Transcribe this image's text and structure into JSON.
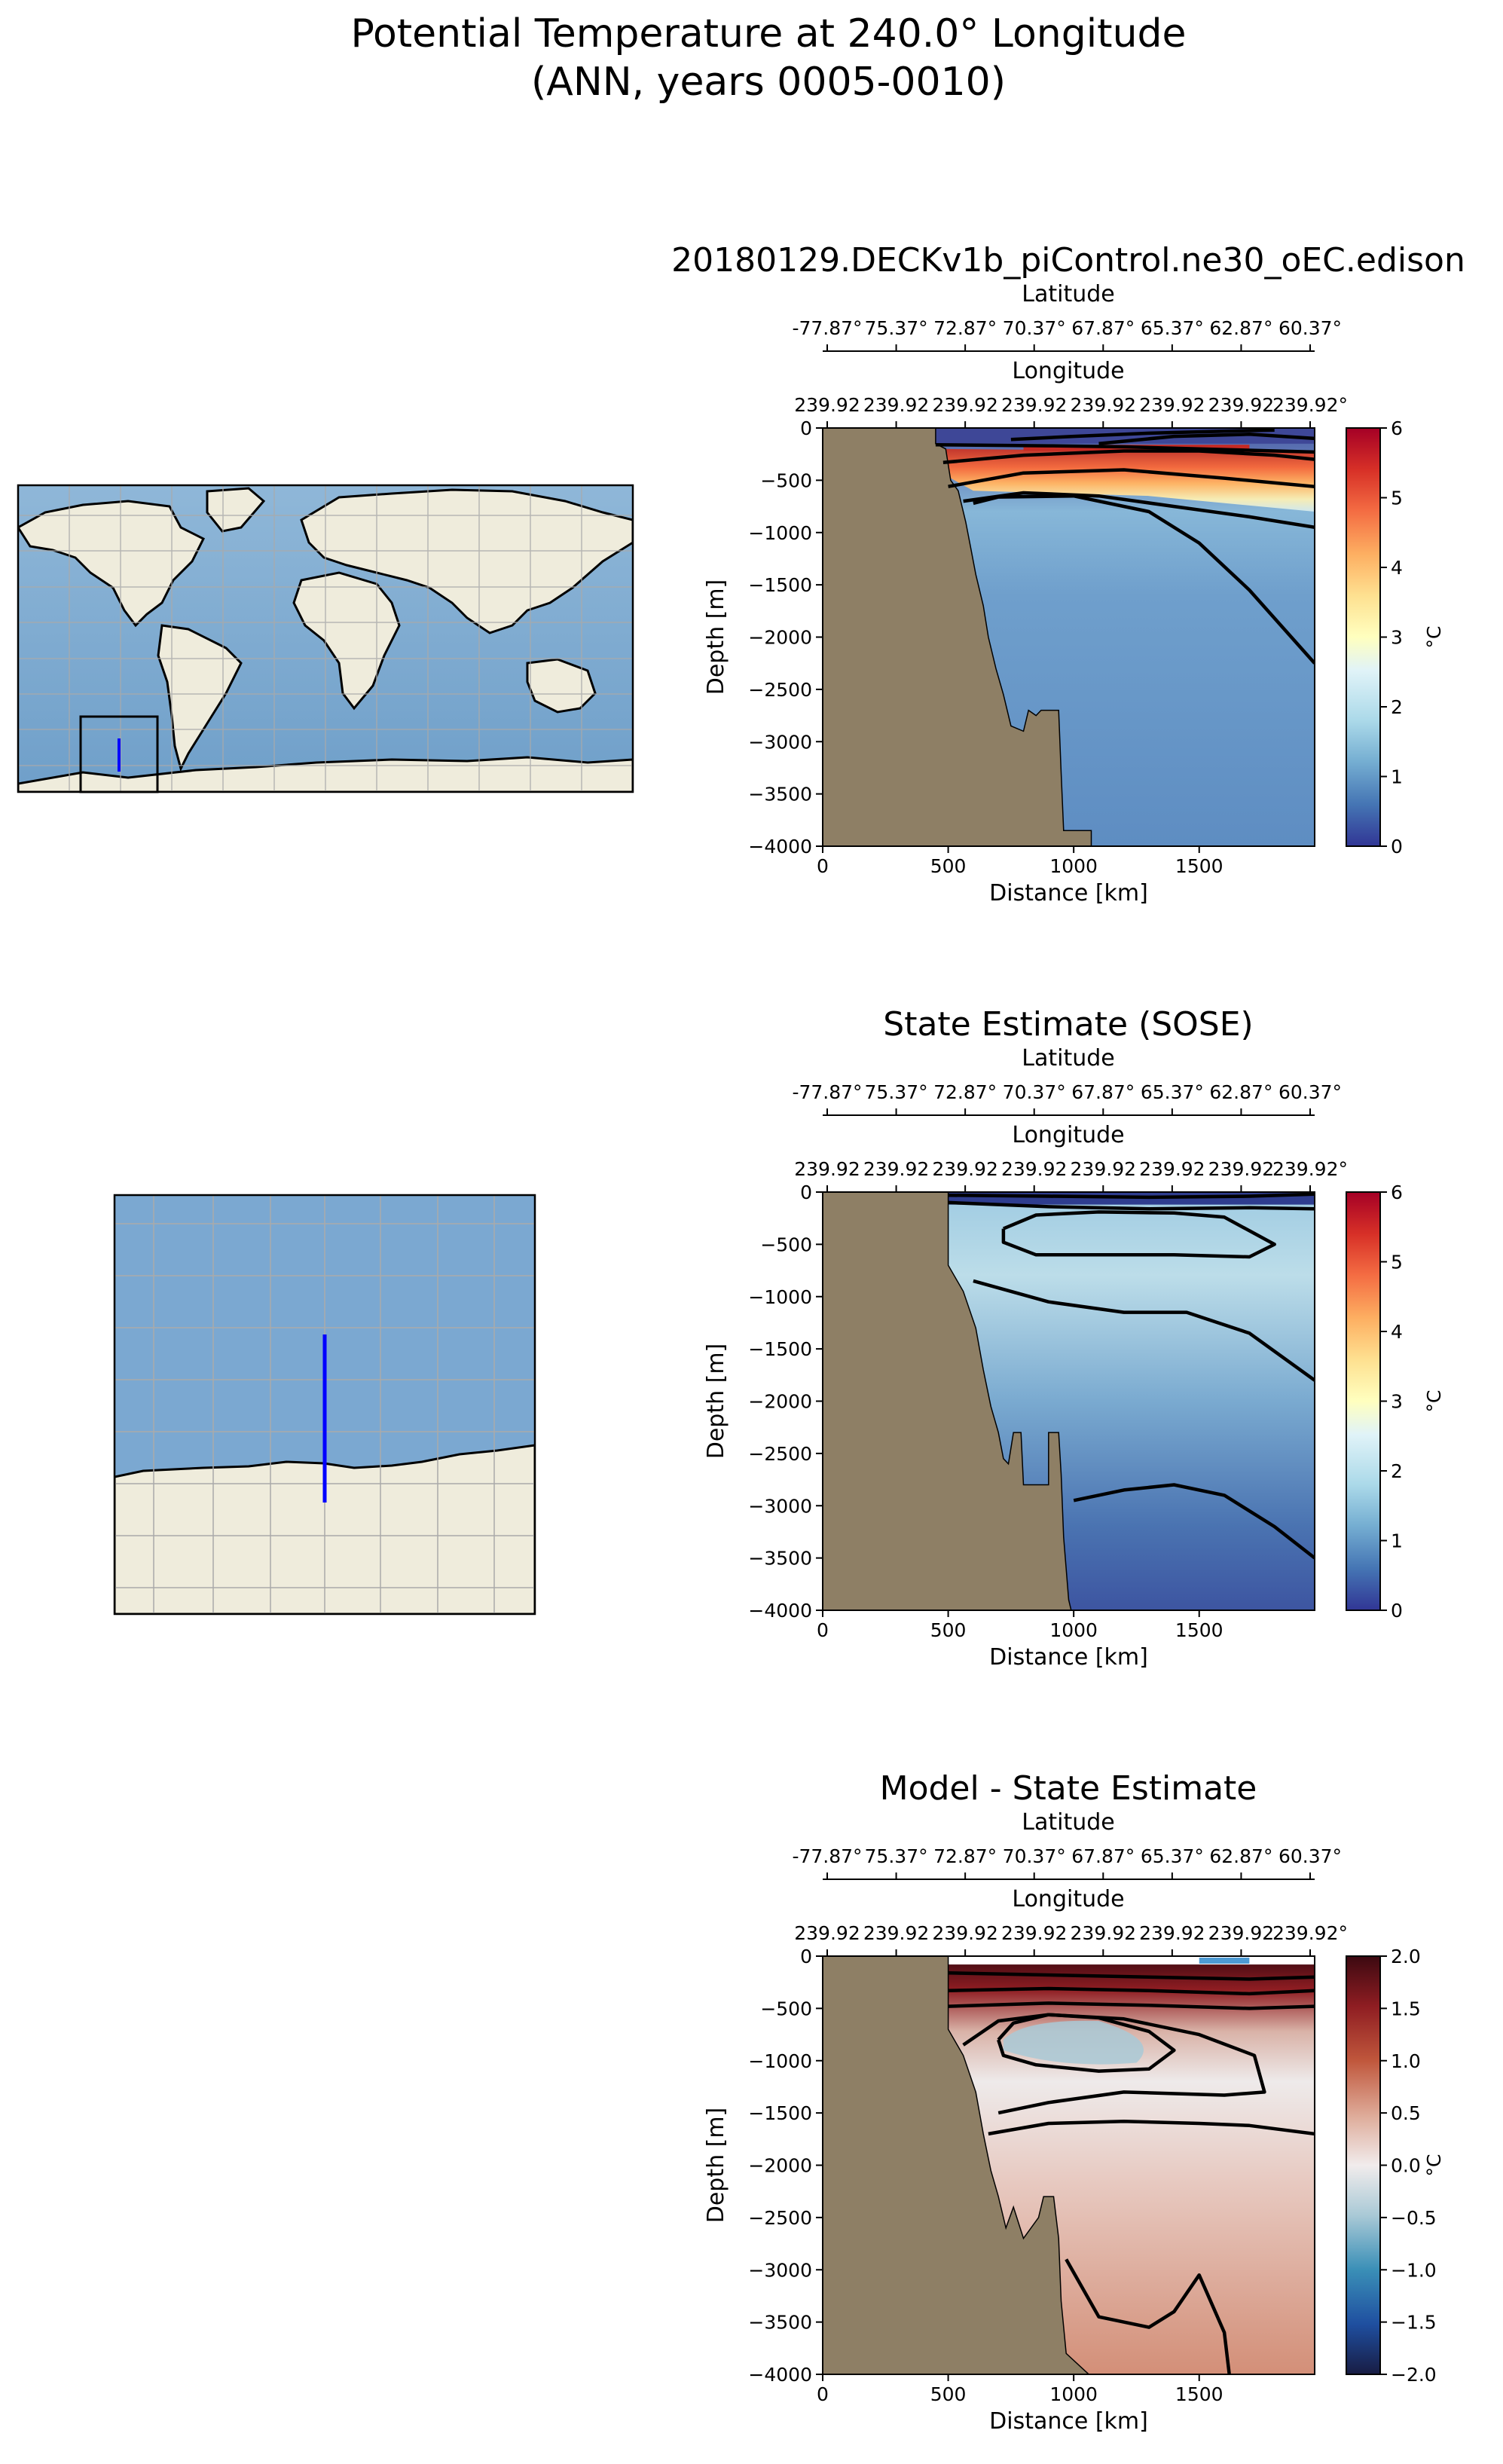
{
  "figure": {
    "title_line1": "Potential Temperature at 240.0° Longitude",
    "title_line2": "(ANN, years 0005-0010)"
  },
  "colors": {
    "land": "#8e7f65",
    "map_ocean": "#7aa7cf",
    "map_land": "#efecdc",
    "transect": "#0000ff",
    "contour": "#000000"
  },
  "chart_data": [
    {
      "type": "heatmap",
      "title": "20180129.DECKv1b_piControl.ne30_oEC.edison",
      "lat_axis_label": "Latitude",
      "lat_ticks": [
        "-77.87°",
        "75.37°",
        "72.87°",
        "70.37°",
        "67.87°",
        "65.37°",
        "62.87°",
        "60.37°"
      ],
      "lon_axis_label": "Longitude",
      "lon_ticks": [
        "239.92",
        "239.92",
        "239.92",
        "239.92",
        "239.92",
        "239.92",
        "239.92",
        "239.92°"
      ],
      "xlabel": "Distance [km]",
      "ylabel": "Depth [m]",
      "xlim": [
        0,
        1960
      ],
      "ylim": [
        -4000,
        0
      ],
      "x_ticks": [
        "0",
        "500",
        "1000",
        "1500"
      ],
      "y_ticks": [
        "0",
        "−500",
        "−1000",
        "−1500",
        "−2000",
        "−2500",
        "−3000",
        "−3500",
        "−4000"
      ],
      "colorbar_label": "°C",
      "colorbar_ticks": [
        "0",
        "1",
        "2",
        "3",
        "4",
        "5",
        "6"
      ],
      "clim": [
        0,
        6
      ],
      "colormap": "RdYlBu_r"
    },
    {
      "type": "heatmap",
      "title": "State Estimate (SOSE)",
      "lat_axis_label": "Latitude",
      "lat_ticks": [
        "-77.87°",
        "75.37°",
        "72.87°",
        "70.37°",
        "67.87°",
        "65.37°",
        "62.87°",
        "60.37°"
      ],
      "lon_axis_label": "Longitude",
      "lon_ticks": [
        "239.92",
        "239.92",
        "239.92",
        "239.92",
        "239.92",
        "239.92",
        "239.92",
        "239.92°"
      ],
      "xlabel": "Distance [km]",
      "ylabel": "Depth [m]",
      "xlim": [
        0,
        1960
      ],
      "ylim": [
        -4000,
        0
      ],
      "x_ticks": [
        "0",
        "500",
        "1000",
        "1500"
      ],
      "y_ticks": [
        "0",
        "−500",
        "−1000",
        "−1500",
        "−2000",
        "−2500",
        "−3000",
        "−3500",
        "−4000"
      ],
      "colorbar_label": "°C",
      "colorbar_ticks": [
        "0",
        "1",
        "2",
        "3",
        "4",
        "5",
        "6"
      ],
      "clim": [
        0,
        6
      ],
      "colormap": "RdYlBu_r"
    },
    {
      "type": "heatmap",
      "title": "Model - State Estimate",
      "lat_axis_label": "Latitude",
      "lat_ticks": [
        "-77.87°",
        "75.37°",
        "72.87°",
        "70.37°",
        "67.87°",
        "65.37°",
        "62.87°",
        "60.37°"
      ],
      "lon_axis_label": "Longitude",
      "lon_ticks": [
        "239.92",
        "239.92",
        "239.92",
        "239.92",
        "239.92",
        "239.92",
        "239.92",
        "239.92°"
      ],
      "xlabel": "Distance [km]",
      "ylabel": "Depth [m]",
      "xlim": [
        0,
        1960
      ],
      "ylim": [
        -4000,
        0
      ],
      "x_ticks": [
        "0",
        "500",
        "1000",
        "1500"
      ],
      "y_ticks": [
        "0",
        "−500",
        "−1000",
        "−1500",
        "−2000",
        "−2500",
        "−3000",
        "−3500",
        "−4000"
      ],
      "colorbar_label": "°C",
      "colorbar_ticks": [
        "−2.0",
        "−1.5",
        "−1.0",
        "−0.5",
        "0.0",
        "0.5",
        "1.0",
        "1.5",
        "2.0"
      ],
      "clim": [
        -2,
        2
      ],
      "colormap": "balance"
    }
  ]
}
